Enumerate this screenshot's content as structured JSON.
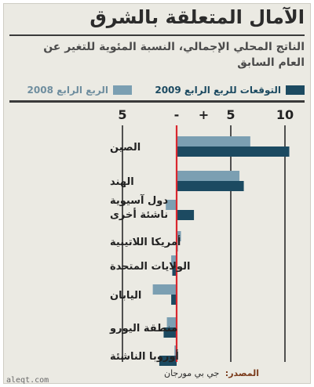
{
  "title": "الآمال المتعلقة بالشرق",
  "subtitle": "الناتج المحلي الإجمالي، النسبة المئوية للتغير عن العام السابق",
  "source_label": "المصدر:",
  "source": "جي بي مورجان",
  "watermark": "aleqt.com",
  "colors": {
    "q4_2008": "#7b9fb2",
    "forecast_q4_2009": "#1c4a61",
    "zero_line": "#d9272e",
    "panel": "#ebeae3"
  },
  "chart_data": {
    "type": "bar",
    "orientation": "horizontal",
    "title": "الآمال المتعلقة بالشرق",
    "subtitle": "الناتج المحلي الإجمالي، النسبة المئوية للتغير عن العام السابق",
    "xlim": [
      -5,
      10
    ],
    "ticks": [
      {
        "value": -5,
        "label": "5"
      },
      {
        "value": 0,
        "label": "-"
      },
      {
        "value": 2.5,
        "label": "+"
      },
      {
        "value": 5,
        "label": "5"
      },
      {
        "value": 10,
        "label": "10"
      }
    ],
    "categories": [
      "الصين",
      "الهند",
      "دول آسيوية ناشئة أخرى",
      "أمريكا اللاتينية",
      "الولايات المتحدة",
      "اليابان",
      "منطقة اليورو",
      "أوروبا الناشئة"
    ],
    "category_lines": [
      [
        "الصين"
      ],
      [
        "الهند"
      ],
      [
        "دول آسيوية",
        "ناشئة أخرى"
      ],
      [
        "أمريكا اللاتينية"
      ],
      [
        "الولايات المتحدة"
      ],
      [
        "اليابان"
      ],
      [
        "منطقة اليورو"
      ],
      [
        "أوروبا الناشئة"
      ]
    ],
    "series": [
      {
        "name": "الربع الرابع 2008",
        "color": "#7b9fb2",
        "values": [
          6.8,
          5.8,
          -1.0,
          0.4,
          -0.5,
          -2.2,
          -0.9,
          -0.2
        ]
      },
      {
        "name": "التوقعات للربع الرابع 2009",
        "color": "#1c4a61",
        "values": [
          10.4,
          6.2,
          1.6,
          0.1,
          -0.4,
          -0.5,
          -1.2,
          -1.6
        ]
      }
    ],
    "legend_position": "top"
  }
}
